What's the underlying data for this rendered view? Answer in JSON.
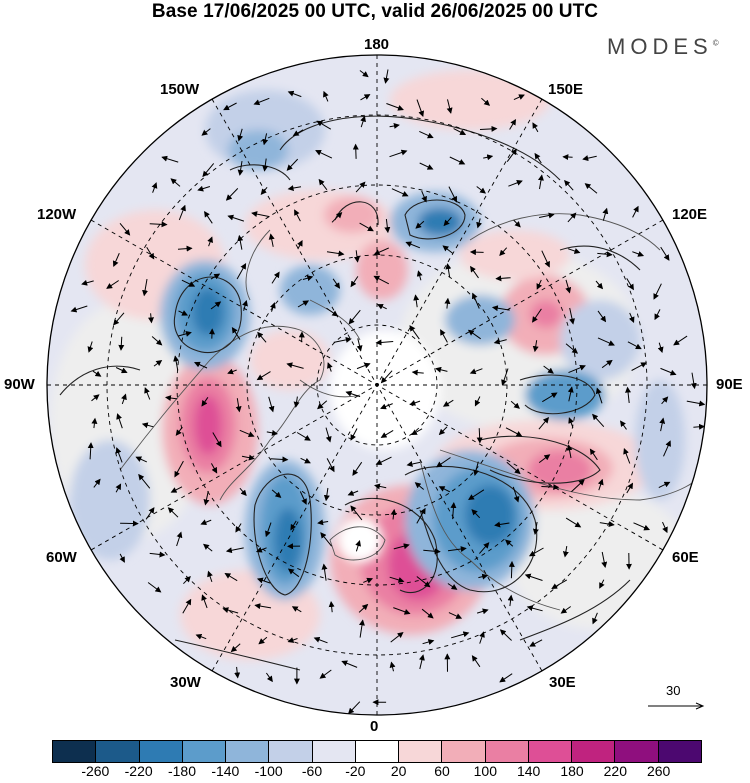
{
  "title": "Base 17/06/2025 00 UTC, valid 26/06/2025 00 UTC",
  "brand": "MODES",
  "brand_mark": "©",
  "longitude_labels": {
    "top": "180",
    "bottom": "0",
    "left": "90W",
    "right": "90E",
    "upper_left_1": "150W",
    "upper_left_2": "120W",
    "lower_left_1": "60W",
    "lower_left_2": "30W",
    "upper_right_1": "150E",
    "upper_right_2": "120E",
    "lower_right_1": "60E",
    "lower_right_2": "30E"
  },
  "reference_vector": "30",
  "colorbar": {
    "colors": [
      "#0d2f4f",
      "#1c5a8a",
      "#2e7bb3",
      "#5c9ccb",
      "#8fb5da",
      "#c3d0e8",
      "#e4e6f2",
      "#ffffff",
      "#f7d7d8",
      "#f2aeb8",
      "#ea7fa3",
      "#de4f96",
      "#c0237f",
      "#8f0f7e",
      "#4c0870"
    ],
    "tick_labels": [
      "-260",
      "-220",
      "-180",
      "-140",
      "-100",
      "-60",
      "-20",
      "20",
      "60",
      "100",
      "140",
      "180",
      "220",
      "260"
    ]
  }
}
